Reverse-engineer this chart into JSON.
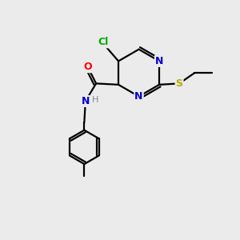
{
  "bg_color": "#ebebeb",
  "atom_colors": {
    "C": "#000000",
    "N": "#0000cc",
    "O": "#ff0000",
    "S": "#bbaa00",
    "Cl": "#00aa00",
    "H": "#888888"
  },
  "bond_color": "#000000",
  "bond_width": 1.6,
  "lw": 1.6
}
